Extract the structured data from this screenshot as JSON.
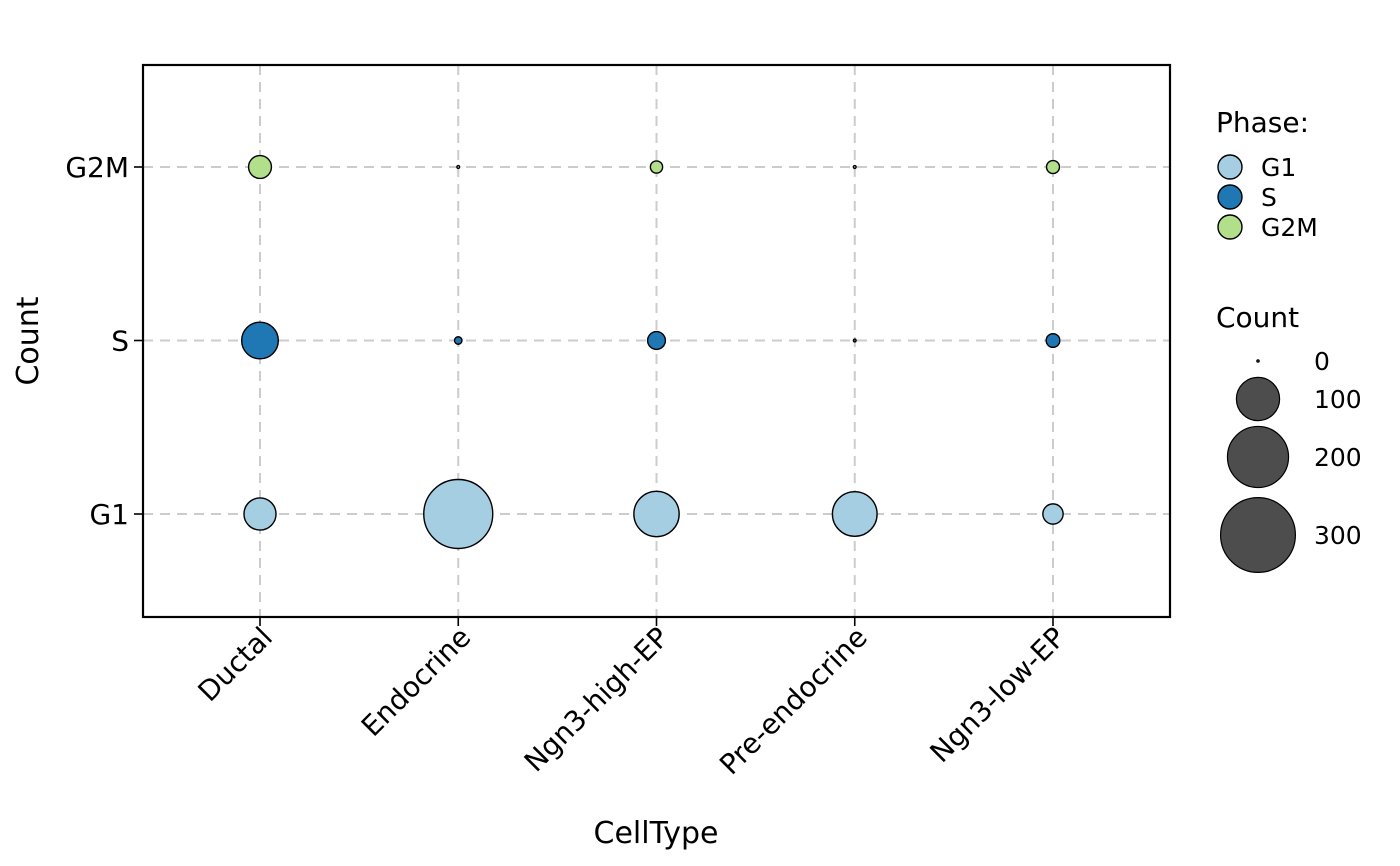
{
  "chart_data": {
    "type": "scatter",
    "xlabel": "CellType",
    "ylabel": "Count",
    "categories": [
      "Ductal",
      "Endocrine",
      "Ngn3-high-EP",
      "Pre-endocrine",
      "Ngn3-low-EP"
    ],
    "y_categories": [
      "G1",
      "S",
      "G2M"
    ],
    "grid": true,
    "legend_placement": "right",
    "series": [
      {
        "name": "G1",
        "color": "#a6cee3",
        "values": [
          55,
          255,
          110,
          107,
          22
        ]
      },
      {
        "name": "S",
        "color": "#1f78b4",
        "values": [
          72,
          3,
          17,
          0,
          10
        ]
      },
      {
        "name": "G2M",
        "color": "#b2df8a",
        "values": [
          28,
          0,
          8,
          0,
          9
        ]
      }
    ],
    "legend": {
      "phase_title": "Phase:",
      "phase_items": [
        "G1",
        "S",
        "G2M"
      ],
      "size_title": "Count",
      "size_items": [
        "0",
        "100",
        "200",
        "300"
      ],
      "size_values": [
        0,
        100,
        200,
        300
      ],
      "size_color": "#4d4d4d"
    }
  }
}
